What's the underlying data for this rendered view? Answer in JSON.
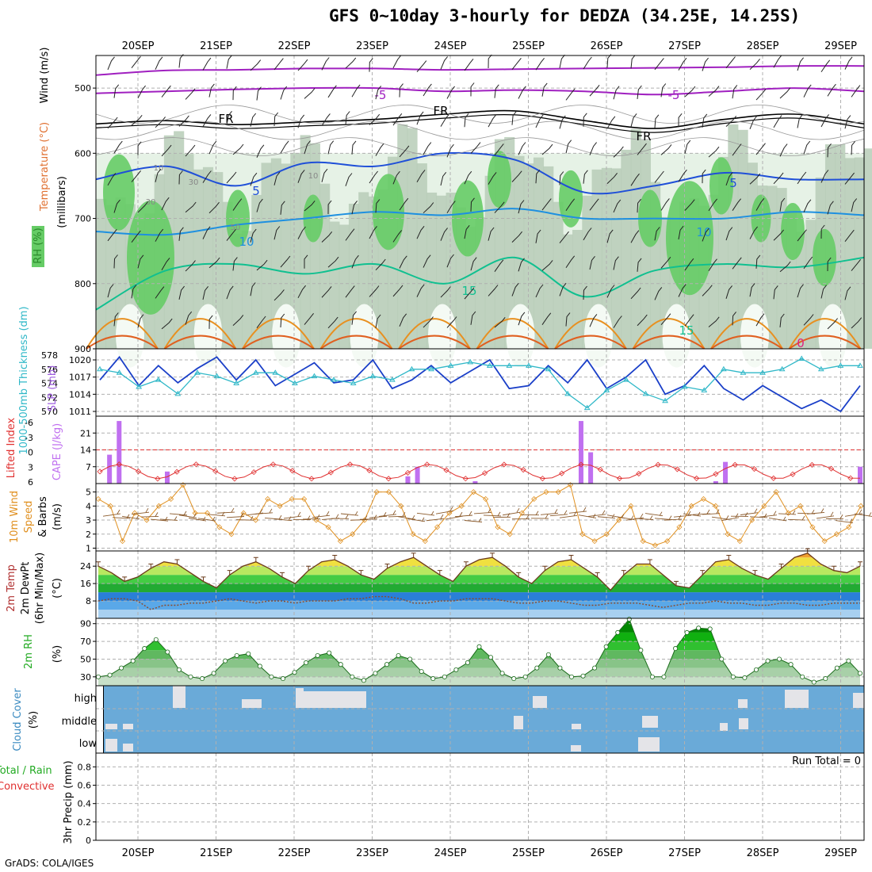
{
  "title": "GFS 0~10day 3-hourly for DEDZA (34.25E, 14.25S)",
  "credit": "GrADS: COLA/IGES",
  "dates": [
    "20SEP",
    "21SEP",
    "22SEP",
    "23SEP",
    "24SEP",
    "25SEP",
    "26SEP",
    "27SEP",
    "28SEP",
    "29SEP"
  ],
  "colors": {
    "temp_purple": "#a020c0",
    "temp_blue": "#1f4fd8",
    "temp_lightblue": "#1e90e0",
    "temp_teal": "#10c090",
    "temp_orange": "#e89020",
    "freeze": "#000000",
    "rh_light": "#e6f2e6",
    "rh_mid": "#b7cdb7",
    "rh_green": "#66cc66",
    "slp": "#1a3fc8",
    "thickness": "#30b8c8",
    "cape": "#c070f0",
    "li": "#e03030",
    "wind_speed": "#e09020",
    "barb": "#8b5a2b",
    "cloud": "#6aaad8",
    "cloud_gap": "#f4f0f4"
  },
  "chart_data": [
    {
      "type": "line",
      "name": "upper-air",
      "ylabel_parts": [
        "Wind (m/s)",
        "Temperature (°C)",
        "RH (%)"
      ],
      "ylabel2": "(millibars)",
      "y_ticks": [
        500,
        600,
        700,
        800,
        900
      ],
      "ylim": [
        900,
        450
      ],
      "y_log": false,
      "contour_labels": [
        "-5",
        "-5",
        "FR",
        "FR",
        "FR",
        "5",
        "5",
        "10",
        "10",
        "15",
        "15",
        "0",
        "10",
        "10",
        "30",
        "30",
        "50"
      ],
      "isotherms": [
        {
          "label": "-5",
          "color": "temp_purple",
          "p": [
            480,
            473,
            472,
            470,
            470,
            472,
            471,
            470,
            469,
            468,
            466,
            466
          ]
        },
        {
          "label": "-5",
          "color": "temp_purple",
          "p": [
            508,
            505,
            502,
            500,
            500,
            505,
            503,
            505,
            510,
            505,
            500,
            505
          ]
        },
        {
          "label": "FR",
          "color": "freeze",
          "p": [
            555,
            550,
            556,
            552,
            548,
            540,
            535,
            550,
            562,
            548,
            540,
            555
          ]
        },
        {
          "label": "5",
          "color": "temp_blue",
          "p": [
            640,
            620,
            650,
            615,
            620,
            600,
            610,
            660,
            650,
            630,
            640,
            640
          ]
        },
        {
          "label": "10",
          "color": "temp_lightblue",
          "p": [
            720,
            725,
            710,
            700,
            690,
            695,
            685,
            700,
            700,
            700,
            690,
            695
          ]
        },
        {
          "label": "15",
          "color": "temp_teal",
          "p": [
            840,
            780,
            770,
            785,
            770,
            800,
            760,
            820,
            780,
            770,
            775,
            760
          ]
        }
      ]
    },
    {
      "type": "line",
      "name": "slp-thickness",
      "ylabel_left": "1000-500mb Thickness (dm)",
      "ylabel_right": "SLP (mb)",
      "left_ticks": [
        570,
        572,
        574,
        576,
        578
      ],
      "right_ticks": [
        1011,
        1014,
        1017,
        1020
      ],
      "series": [
        {
          "name": "SLP (mb)",
          "values": [
            1016.5,
            1020.5,
            1015.5,
            1019,
            1016,
            1018.5,
            1020.5,
            1016.5,
            1020,
            1015.5,
            1017.5,
            1019.5,
            1016,
            1016.5,
            1020,
            1015,
            1016.5,
            1019,
            1016,
            1018,
            1020,
            1015,
            1015.5,
            1019,
            1016,
            1020,
            1015,
            1017,
            1020,
            1014,
            1015.5,
            1019,
            1015,
            1013,
            1015.5,
            1013.5,
            1011.5,
            1013,
            1011,
            1015.5
          ]
        },
        {
          "name": "1000-500mb Thickness (dm)",
          "values": [
            576,
            575.5,
            573.5,
            574.5,
            572.5,
            575.5,
            575,
            574,
            575.5,
            575.5,
            574,
            575,
            574.5,
            574,
            575,
            574.5,
            576,
            576,
            576.5,
            577,
            576.5,
            576.5,
            576.5,
            576,
            572.5,
            570.5,
            573,
            574.5,
            572.5,
            571.5,
            573.5,
            573,
            576,
            575.5,
            575.5,
            576,
            577.5,
            576,
            576.5,
            576.5
          ]
        }
      ]
    },
    {
      "type": "bar",
      "name": "lifted-cape",
      "ylabel_left": "Lifted Index",
      "ylabel_right": "CAPE (J/kg)",
      "li_ticks": [
        "-6",
        "-3",
        "0",
        "3",
        "6"
      ],
      "cape_ticks": [
        7,
        14,
        21
      ],
      "cape_values": [
        0,
        12,
        26,
        0,
        0,
        0,
        0,
        5,
        0,
        0,
        0,
        0,
        0,
        0,
        0,
        0,
        0,
        0,
        0,
        0,
        0,
        0,
        0,
        0,
        0,
        0,
        0,
        0,
        0,
        0,
        0,
        0,
        3,
        7,
        0,
        0,
        0,
        0,
        0,
        1,
        0,
        0,
        0,
        0,
        0,
        0,
        0,
        0,
        0,
        0,
        26,
        13,
        0,
        0,
        0,
        0,
        0,
        0,
        0,
        0,
        0,
        0,
        0,
        0,
        1,
        9,
        0,
        0,
        0,
        0,
        0,
        0,
        0,
        0,
        0,
        0,
        0,
        0,
        0,
        7
      ]
    },
    {
      "type": "line",
      "name": "wind10m",
      "ylabel": "10m Wind Speed & Barbs (m/s)",
      "y_ticks": [
        1,
        2,
        3,
        4,
        5
      ],
      "values": [
        4.5,
        4,
        1.5,
        3.5,
        3,
        4,
        4.5,
        5.5,
        3.5,
        3.5,
        2.5,
        2,
        3.5,
        3,
        4.5,
        4,
        4.5,
        4.5,
        3,
        2.5,
        1.5,
        2,
        3,
        5,
        5,
        4,
        2,
        1.5,
        2.5,
        3.5,
        4,
        5,
        4.5,
        2.5,
        2,
        3.5,
        4.5,
        5,
        5,
        5.5,
        2,
        1.5,
        2,
        3,
        4,
        1.5,
        1.2,
        1.5,
        2.5,
        4,
        4.5,
        4,
        2,
        1.5,
        3,
        4,
        5,
        3.5,
        4,
        2.5,
        1.5,
        2,
        2.5,
        4
      ]
    },
    {
      "type": "area",
      "name": "temp2m",
      "ylabel": "2m Temp 2m DewPt (6hr Min/Max) (°C)",
      "y_ticks": [
        8,
        16,
        24
      ],
      "temp_values": [
        24,
        21,
        17,
        19,
        23,
        26,
        25,
        21,
        17,
        14,
        20,
        24,
        26,
        23,
        19,
        16,
        22,
        26,
        27,
        24,
        20,
        18,
        23,
        26,
        28,
        24,
        20,
        17,
        24,
        27,
        28,
        24,
        19,
        16,
        22,
        26,
        27,
        23,
        19,
        13,
        20,
        25,
        25,
        20,
        15,
        14,
        20,
        26,
        27,
        23,
        20,
        18,
        23,
        28,
        30,
        25,
        22,
        21,
        24
      ],
      "dewpt_values": [
        8,
        9,
        9,
        8,
        4,
        6,
        6,
        7,
        7,
        8,
        9,
        8,
        7,
        8,
        8,
        7,
        8,
        8,
        8,
        9,
        9,
        10,
        10,
        9,
        7,
        7,
        8,
        8,
        9,
        9,
        9,
        8,
        7,
        7,
        8,
        8,
        7,
        6,
        6,
        7,
        7,
        7,
        6,
        5,
        6,
        7,
        7,
        8,
        7,
        7,
        6,
        6,
        7,
        7,
        6,
        6,
        7,
        7,
        7
      ]
    },
    {
      "type": "area",
      "name": "rh2m",
      "ylabel": "2m RH (%)",
      "y_ticks": [
        30,
        50,
        70,
        90
      ],
      "values": [
        30,
        32,
        40,
        48,
        62,
        72,
        58,
        38,
        30,
        28,
        34,
        48,
        54,
        56,
        42,
        30,
        28,
        35,
        46,
        54,
        57,
        44,
        30,
        26,
        34,
        44,
        54,
        50,
        36,
        28,
        30,
        38,
        46,
        64,
        52,
        34,
        28,
        30,
        40,
        55,
        40,
        30,
        31,
        40,
        64,
        80,
        95,
        60,
        30,
        30,
        62,
        80,
        85,
        84,
        50,
        30,
        29,
        38,
        48,
        50,
        44,
        30,
        24,
        28,
        40,
        48,
        34
      ]
    },
    {
      "type": "heatmap",
      "name": "cloud-cover",
      "ylabel": "Cloud Cover (%)",
      "row_labels": [
        "high",
        "middle",
        "low"
      ]
    },
    {
      "type": "bar",
      "name": "precip",
      "ylabel": "3hr Precip (mm)",
      "ylabel_extra": [
        "Total / Rain",
        "Convective"
      ],
      "y_ticks": [
        "0",
        "0.2",
        "0.4",
        "0.6",
        "0.8"
      ],
      "values": [],
      "annotation": "Run Total = 0"
    }
  ]
}
